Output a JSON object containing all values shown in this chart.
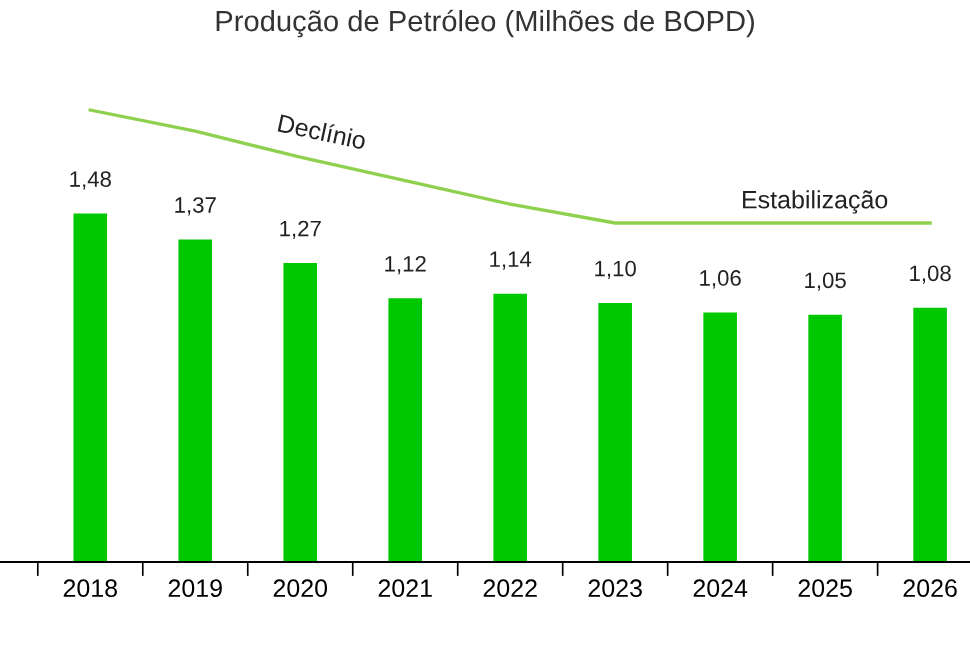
{
  "chart_data": {
    "type": "bar",
    "title": "Produção de Petróleo (Milhões de BOPD)",
    "categories": [
      "2018",
      "2019",
      "2020",
      "2021",
      "2022",
      "2023",
      "2024",
      "2025",
      "2026"
    ],
    "series": [
      {
        "color": "#00c800",
        "values": [
          1.48,
          1.37,
          1.27,
          1.12,
          1.14,
          1.1,
          1.06,
          1.05,
          1.08
        ],
        "value_labels": [
          "1,48",
          "1,37",
          "1,27",
          "1,12",
          "1,14",
          "1,10",
          "1,06",
          "1,05",
          "1,08"
        ]
      },
      {
        "type": "line",
        "color": "#8fd14f",
        "values": [
          1.92,
          1.83,
          1.72,
          1.62,
          1.52,
          1.44,
          1.44,
          1.44,
          1.44
        ]
      }
    ],
    "annotations": [
      "Declínio",
      "Estabilização"
    ],
    "grid": false,
    "legend": false
  }
}
